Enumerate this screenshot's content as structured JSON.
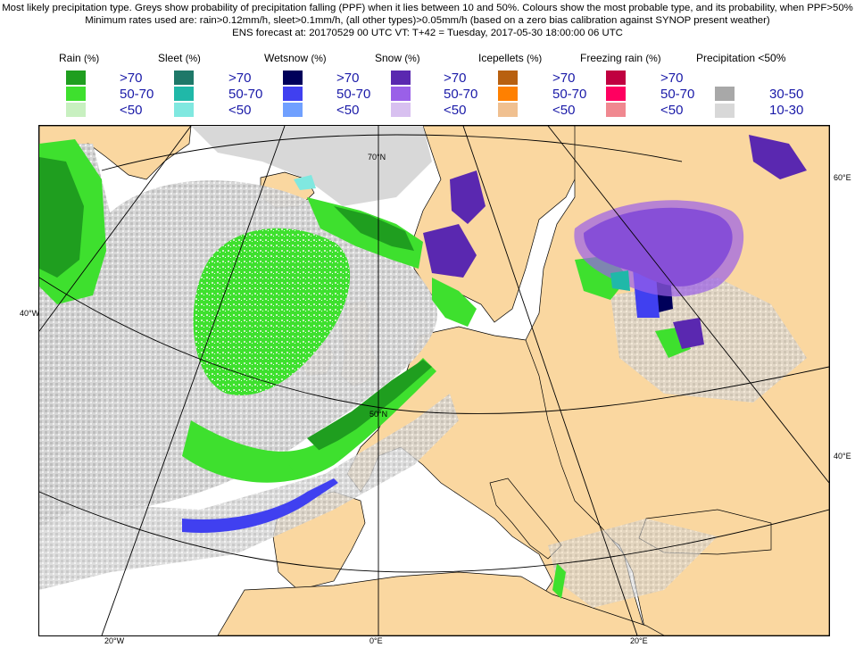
{
  "header": {
    "line1": "Most likely precipitation type. Greys show probability of precipitation falling (PPF) when it lies between 10 and 50%. Colours show the most probable type, and its probability, when PPF>50%",
    "line2": "Minimum rates used are: rain>0.12mm/h, sleet>0.1mm/h, (all other types)>0.05mm/h (based on a zero bias calibration against SYNOP present weather)",
    "line3": "ENS forecast at: 20170529 00 UTC     VT: T+42 = Tuesday, 2017-05-30 18:00:00  06 UTC"
  },
  "legend": {
    "pct": "(%)",
    "categories": [
      {
        "name": "Rain",
        "colors": [
          "#1f9e1f",
          "#3ee02e",
          "#c8f0c0"
        ]
      },
      {
        "name": "Sleet",
        "colors": [
          "#1e7868",
          "#20b8a8",
          "#80e8e0"
        ]
      },
      {
        "name": "Wetsnow",
        "colors": [
          "#00005a",
          "#4040f0",
          "#70a0ff"
        ]
      },
      {
        "name": "Snow",
        "colors": [
          "#5a28b0",
          "#9a60e8",
          "#d8c0f0"
        ]
      },
      {
        "name": "Icepellets",
        "colors": [
          "#b86010",
          "#ff8000",
          "#f0c090"
        ]
      },
      {
        "name": "Freezing rain",
        "colors": [
          "#c00040",
          "#ff0060",
          "#f08890"
        ]
      }
    ],
    "levels": [
      ">70",
      "50-70",
      "<50"
    ],
    "ppf_title": "Precipitation <50%",
    "ppf_levels": [
      "30-50",
      "10-30"
    ],
    "ppf_colors": [
      "#a8a8a8",
      "#d8d8d8"
    ]
  },
  "map": {
    "land_color": "#fad7a0",
    "sea_color": "#ffffff",
    "labels": {
      "lat70": "70°N",
      "lat50": "50°N",
      "lat60": "60°E",
      "lat40e": "40°E",
      "lon40w": "40°W",
      "lon20w": "20°W",
      "lon0": "0°E",
      "lon20e": "20°E"
    }
  }
}
